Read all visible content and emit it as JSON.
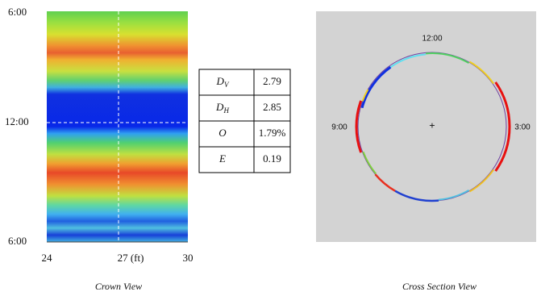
{
  "crown_view": {
    "y_tick_labels": [
      "6:00",
      "12:00",
      "6:00"
    ],
    "x_tick_labels": [
      "24",
      "27 (ft)",
      "30"
    ],
    "caption": "Crown View"
  },
  "table": {
    "rows": [
      {
        "symbol": "D",
        "sub": "V",
        "value": "2.79"
      },
      {
        "symbol": "D",
        "sub": "H",
        "value": "2.85"
      },
      {
        "symbol": "O",
        "value": "1.79%"
      },
      {
        "symbol": "E",
        "value": "0.19"
      }
    ]
  },
  "cross_section_view": {
    "clock_labels": [
      "12:00",
      "9:00",
      "3:00"
    ],
    "caption": "Cross Section View"
  }
}
